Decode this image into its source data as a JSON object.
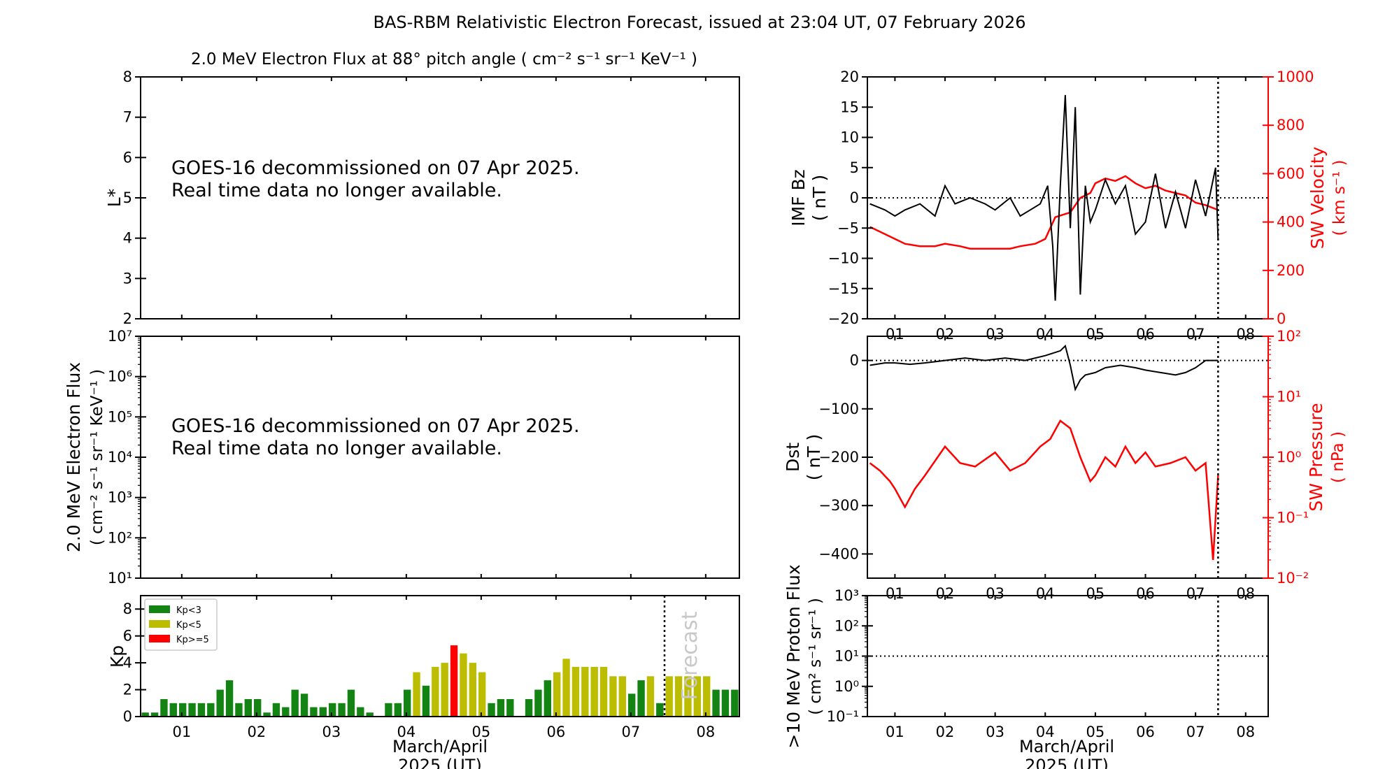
{
  "title": "BAS-RBM Relativistic Electron Forecast, issued at 23:04 UT, 07 February 2026",
  "colors": {
    "kp_low": "#138413",
    "kp_mid": "#bdbd00",
    "kp_high": "#ff0000",
    "red": "#ff0000",
    "black": "#000000"
  },
  "date_ticks": [
    "01",
    "02",
    "03",
    "04",
    "05",
    "06",
    "07",
    "08"
  ],
  "panels": {
    "lstar": {
      "title": "2.0 MeV Electron Flux at 88° pitch angle ( cm⁻² s⁻¹ sr⁻¹ KeV⁻¹ )",
      "ylabel": "L*",
      "yticks": [
        "2",
        "3",
        "4",
        "5",
        "6",
        "7",
        "8"
      ],
      "message": "GOES-16 decommissioned on 07 Apr 2025.\nReal time data no longer available."
    },
    "eflux": {
      "ylabel_line1": "2.0 MeV Electron Flux",
      "ylabel_line2": "( cm⁻² s⁻¹ sr⁻¹ KeV⁻¹ )",
      "yticks": [
        "10¹",
        "10²",
        "10³",
        "10⁴",
        "10⁵",
        "10⁶",
        "10⁷"
      ],
      "message": "GOES-16 decommissioned on 07 Apr 2025.\nReal time data no longer available."
    },
    "kp": {
      "ylabel": "Kp",
      "yticks": [
        "0",
        "2",
        "4",
        "6",
        "8"
      ],
      "forecast_label": "Forecast",
      "xlabel_line1": "March/April",
      "xlabel_line2": "2025 (UT)",
      "legend": [
        "Kp<3",
        "Kp<5",
        "Kp>=5"
      ]
    },
    "imf": {
      "ylabel_left_line1": "IMF Bz",
      "ylabel_left_line2": "( nT )",
      "ylabel_right_line1": "SW Velocity",
      "ylabel_right_line2": "( km s⁻¹ )",
      "yticks_left": [
        "−20",
        "−15",
        "−10",
        "−5",
        "0",
        "5",
        "10",
        "15",
        "20"
      ],
      "yticks_right": [
        "0",
        "200",
        "400",
        "600",
        "800",
        "1000"
      ]
    },
    "dst": {
      "ylabel_left_line1": "Dst",
      "ylabel_left_line2": "( nT )",
      "ylabel_right_line1": "SW Pressure",
      "ylabel_right_line2": "( nPa )",
      "yticks_left": [
        "−400",
        "−300",
        "−200",
        "−100",
        "0"
      ],
      "yticks_right": [
        "10⁻²",
        "10⁻¹",
        "10⁰",
        "10¹",
        "10²"
      ]
    },
    "proton": {
      "ylabel_line1": ">10 MeV Proton Flux",
      "ylabel_line2": "( cm² s⁻¹ sr⁻¹ )",
      "yticks": [
        "10⁻¹",
        "10⁰",
        "10¹",
        "10²",
        "10³"
      ],
      "xlabel_line1": "March/April",
      "xlabel_line2": "2025 (UT)"
    }
  },
  "chart_data": [
    {
      "type": "bar",
      "panel": "kp",
      "ylabel": "Kp",
      "ylim": [
        0,
        9
      ],
      "x_day_range": [
        0.45,
        8.45
      ],
      "bar_width_days": 0.125,
      "forecast_start_day": 7.45,
      "start_day": 0.45,
      "values": [
        0.3,
        0.3,
        1.3,
        1,
        1,
        1,
        1,
        1,
        2,
        2.7,
        1,
        1.3,
        1.3,
        0.3,
        1,
        0.7,
        2,
        1.7,
        0.7,
        0.7,
        1,
        1,
        2,
        0.7,
        0.3,
        0,
        1,
        1,
        2,
        3.3,
        2.3,
        3.7,
        4,
        5.3,
        4.7,
        4,
        3.3,
        1,
        1.3,
        1.3,
        0,
        1.3,
        2,
        2.7,
        3.3,
        4.3,
        3.7,
        3.7,
        3.7,
        3.7,
        3,
        3,
        1.7,
        2.7,
        3,
        1,
        3,
        3,
        3,
        3,
        3,
        2,
        2,
        2
      ],
      "thresholds": {
        "low": 3,
        "high": 5
      }
    },
    {
      "type": "line",
      "panel": "imf",
      "series": [
        {
          "name": "IMF Bz",
          "axis": "left",
          "ylim": [
            -20,
            20
          ],
          "x": [
            0.5,
            0.8,
            1.0,
            1.2,
            1.5,
            1.8,
            2.0,
            2.2,
            2.5,
            2.8,
            3.0,
            3.3,
            3.5,
            3.7,
            3.9,
            4.05,
            4.15,
            4.2,
            4.3,
            4.4,
            4.5,
            4.6,
            4.7,
            4.8,
            4.9,
            5.0,
            5.2,
            5.4,
            5.6,
            5.8,
            6.0,
            6.2,
            6.4,
            6.6,
            6.8,
            7.0,
            7.2,
            7.4,
            7.45
          ],
          "y": [
            -1,
            -2,
            -3,
            -2,
            -1,
            -3,
            2,
            -1,
            0,
            -1,
            -2,
            0,
            -3,
            -2,
            -1,
            2,
            -8,
            -17,
            2,
            17,
            -5,
            15,
            -16,
            2,
            -4,
            -2,
            3,
            -1,
            2,
            -6,
            -4,
            4,
            -5,
            1,
            -5,
            3,
            -3,
            5,
            -7
          ]
        },
        {
          "name": "SW Velocity",
          "axis": "right",
          "ylim": [
            0,
            1000
          ],
          "x": [
            0.5,
            0.8,
            1.0,
            1.2,
            1.5,
            1.8,
            2.0,
            2.3,
            2.5,
            3.0,
            3.3,
            3.5,
            3.8,
            4.0,
            4.2,
            4.5,
            4.7,
            4.9,
            5.0,
            5.2,
            5.4,
            5.6,
            5.8,
            6.0,
            6.2,
            6.4,
            6.6,
            6.8,
            7.0,
            7.2,
            7.45
          ],
          "y": [
            380,
            350,
            330,
            310,
            300,
            300,
            310,
            300,
            290,
            290,
            290,
            300,
            310,
            330,
            420,
            440,
            500,
            520,
            560,
            580,
            570,
            590,
            560,
            540,
            550,
            530,
            520,
            510,
            480,
            470,
            450
          ]
        }
      ]
    },
    {
      "type": "line",
      "panel": "dst",
      "series": [
        {
          "name": "Dst",
          "axis": "left",
          "ylim": [
            -450,
            50
          ],
          "x": [
            0.5,
            0.8,
            1.0,
            1.3,
            1.6,
            2.0,
            2.4,
            2.8,
            3.2,
            3.6,
            4.0,
            4.3,
            4.4,
            4.5,
            4.6,
            4.7,
            4.8,
            5.0,
            5.2,
            5.5,
            5.8,
            6.0,
            6.3,
            6.6,
            6.8,
            7.0,
            7.2,
            7.45
          ],
          "y": [
            -10,
            -5,
            -5,
            -8,
            -5,
            0,
            5,
            0,
            5,
            0,
            10,
            20,
            30,
            -10,
            -60,
            -40,
            -30,
            -25,
            -15,
            -10,
            -15,
            -20,
            -25,
            -30,
            -25,
            -15,
            0,
            0
          ]
        },
        {
          "name": "SW Pressure",
          "axis": "right",
          "log": true,
          "ylim": [
            0.01,
            100
          ],
          "x": [
            0.5,
            0.7,
            0.9,
            1.0,
            1.2,
            1.4,
            1.6,
            2.0,
            2.3,
            2.6,
            3.0,
            3.3,
            3.6,
            3.9,
            4.1,
            4.3,
            4.5,
            4.7,
            4.9,
            5.0,
            5.2,
            5.4,
            5.6,
            5.8,
            6.0,
            6.2,
            6.5,
            6.8,
            7.0,
            7.2,
            7.35,
            7.45
          ],
          "y": [
            0.8,
            0.6,
            0.4,
            0.3,
            0.15,
            0.3,
            0.5,
            1.5,
            0.8,
            0.7,
            1.2,
            0.6,
            0.8,
            1.5,
            2,
            4,
            3,
            1,
            0.4,
            0.5,
            1,
            0.7,
            1.5,
            0.8,
            1.2,
            0.7,
            0.8,
            1,
            0.6,
            0.8,
            0.02,
            0.5
          ]
        }
      ]
    },
    {
      "type": "line",
      "panel": "proton",
      "series": [
        {
          "name": "Threshold",
          "log": true,
          "ylim": [
            0.1,
            1000
          ],
          "x": [
            0.45,
            8.45
          ],
          "y": [
            10,
            10
          ]
        }
      ]
    }
  ]
}
